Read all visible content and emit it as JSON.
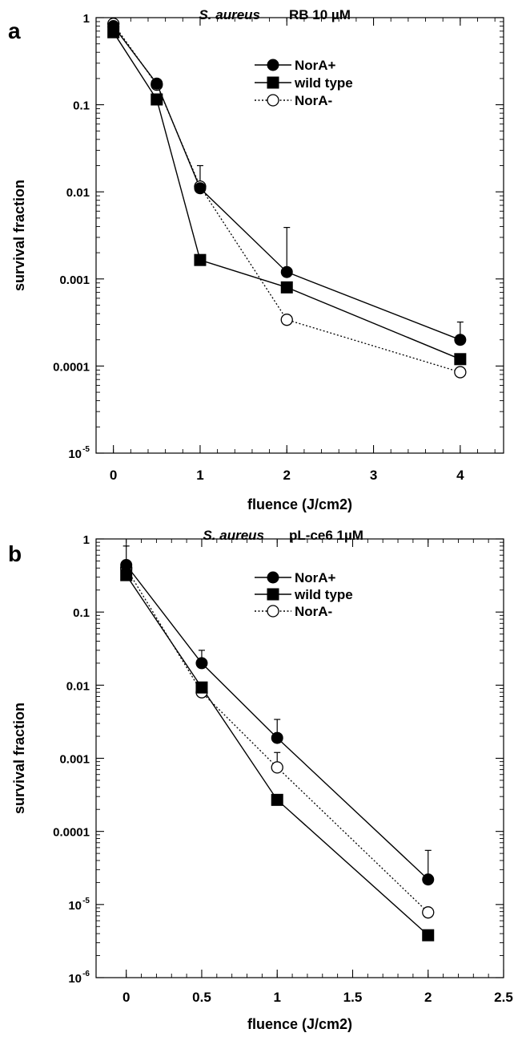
{
  "chart_data": [
    {
      "panel_label": "a",
      "type": "line",
      "title": "S. aureus",
      "title_suffix": "RB 10 µM",
      "xlabel": "fluence (J/cm2)",
      "ylabel": "survival fraction",
      "xlim": [
        -0.2,
        4.5
      ],
      "x_ticks": [
        0,
        1,
        2,
        3,
        4
      ],
      "x_tick_labels": [
        "0",
        "1",
        "2",
        "3",
        "4"
      ],
      "y_scale": "log",
      "ylim": [
        1e-05,
        1
      ],
      "y_ticks": [
        1e-05,
        0.0001,
        0.001,
        0.01,
        0.1,
        1
      ],
      "y_tick_labels": [
        {
          "base": "10",
          "exp": "-5"
        },
        {
          "text": "0.0001"
        },
        {
          "text": "0.001"
        },
        {
          "text": "0.01"
        },
        {
          "text": "0.1"
        },
        {
          "text": "1"
        }
      ],
      "legend_position": "top-right",
      "series": [
        {
          "name": "NorA+",
          "marker": "filled-circle",
          "line": "solid",
          "x": [
            0,
            0.5,
            1,
            2,
            4
          ],
          "y": [
            0.8,
            0.175,
            0.011,
            0.0012,
            0.0002
          ],
          "err_upper": [
            null,
            null,
            0.02,
            0.0039,
            0.00032
          ]
        },
        {
          "name": "wild type",
          "marker": "filled-square",
          "line": "solid",
          "x": [
            0,
            0.5,
            1,
            2,
            4
          ],
          "y": [
            0.68,
            0.115,
            0.00165,
            0.0008,
            0.00012
          ],
          "err_upper": [
            null,
            null,
            null,
            null,
            null
          ]
        },
        {
          "name": "NorA-",
          "marker": "open-circle",
          "line": "dotted",
          "x": [
            0,
            0.5,
            1,
            2,
            4
          ],
          "y": [
            0.85,
            0.17,
            0.0115,
            0.00034,
            8.5e-05
          ],
          "err_upper": [
            null,
            null,
            null,
            null,
            null
          ]
        }
      ]
    },
    {
      "panel_label": "b",
      "type": "line",
      "title": "S. aureus",
      "title_suffix": "pL-ce6 1µM",
      "xlabel": "fluence (J/cm2)",
      "ylabel": "survival fraction",
      "xlim": [
        -0.2,
        2.5
      ],
      "x_ticks": [
        0,
        0.5,
        1,
        1.5,
        2,
        2.5
      ],
      "x_tick_labels": [
        "0",
        "0.5",
        "1",
        "1.5",
        "2",
        "2.5"
      ],
      "y_scale": "log",
      "ylim": [
        1e-06,
        1
      ],
      "y_ticks": [
        1e-06,
        1e-05,
        0.0001,
        0.001,
        0.01,
        0.1,
        1
      ],
      "y_tick_labels": [
        {
          "base": "10",
          "exp": "-6"
        },
        {
          "base": "10",
          "exp": "-5"
        },
        {
          "text": "0.0001"
        },
        {
          "text": "0.001"
        },
        {
          "text": "0.01"
        },
        {
          "text": "0.1"
        },
        {
          "text": "1"
        }
      ],
      "legend_position": "top-right",
      "series": [
        {
          "name": "NorA+",
          "marker": "filled-circle",
          "line": "solid",
          "x": [
            0,
            0.5,
            1,
            2
          ],
          "y": [
            0.44,
            0.02,
            0.0019,
            2.2e-05
          ],
          "err_upper": [
            0.8,
            0.03,
            0.0034,
            5.5e-05
          ]
        },
        {
          "name": "wild type",
          "marker": "filled-square",
          "line": "solid",
          "x": [
            0,
            0.5,
            1,
            2
          ],
          "y": [
            0.32,
            0.0093,
            0.00027,
            3.8e-06
          ],
          "err_upper": [
            null,
            null,
            null,
            null
          ]
        },
        {
          "name": "NorA-",
          "marker": "open-circle",
          "line": "dotted",
          "x": [
            0,
            0.5,
            1,
            2
          ],
          "y": [
            0.4,
            0.008,
            0.00075,
            7.8e-06
          ],
          "err_upper": [
            null,
            null,
            0.0012,
            null
          ]
        }
      ]
    }
  ]
}
